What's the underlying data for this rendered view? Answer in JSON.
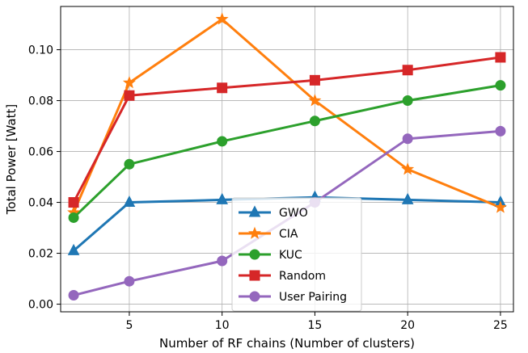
{
  "chart_data": {
    "type": "line",
    "title": "",
    "xlabel": "Number of RF chains (Number of clusters)",
    "ylabel": "Total Power [Watt]",
    "xlim": [
      1.3,
      25.7
    ],
    "ylim": [
      -0.003,
      0.117
    ],
    "grid": true,
    "legend_position": "lower-center",
    "x": [
      2,
      5,
      10,
      15,
      20,
      25
    ],
    "x_ticks": [
      5,
      10,
      15,
      20,
      25
    ],
    "x_tick_labels": [
      "5",
      "10",
      "15",
      "20",
      "25"
    ],
    "y_ticks": [
      0.0,
      0.02,
      0.04,
      0.06,
      0.08,
      0.1
    ],
    "y_tick_labels": [
      "0.00",
      "0.02",
      "0.04",
      "0.06",
      "0.08",
      "0.10"
    ],
    "series": [
      {
        "name": "GWO",
        "color": "#1f77b4",
        "marker": "triangle",
        "values": [
          0.021,
          0.04,
          0.041,
          0.042,
          0.041,
          0.04
        ]
      },
      {
        "name": "CIA",
        "color": "#ff7f0e",
        "marker": "star",
        "values": [
          0.036,
          0.087,
          0.112,
          0.08,
          0.053,
          0.038
        ]
      },
      {
        "name": "KUC",
        "color": "#2ca02c",
        "marker": "circle",
        "values": [
          0.034,
          0.055,
          0.064,
          0.072,
          0.08,
          0.086
        ]
      },
      {
        "name": "Random",
        "color": "#d62728",
        "marker": "square",
        "values": [
          0.04,
          0.082,
          0.085,
          0.088,
          0.092,
          0.097
        ]
      },
      {
        "name": "User Pairing",
        "color": "#9467bd",
        "marker": "circle",
        "values": [
          0.0035,
          0.009,
          0.017,
          0.04,
          0.065,
          0.068
        ]
      }
    ]
  }
}
